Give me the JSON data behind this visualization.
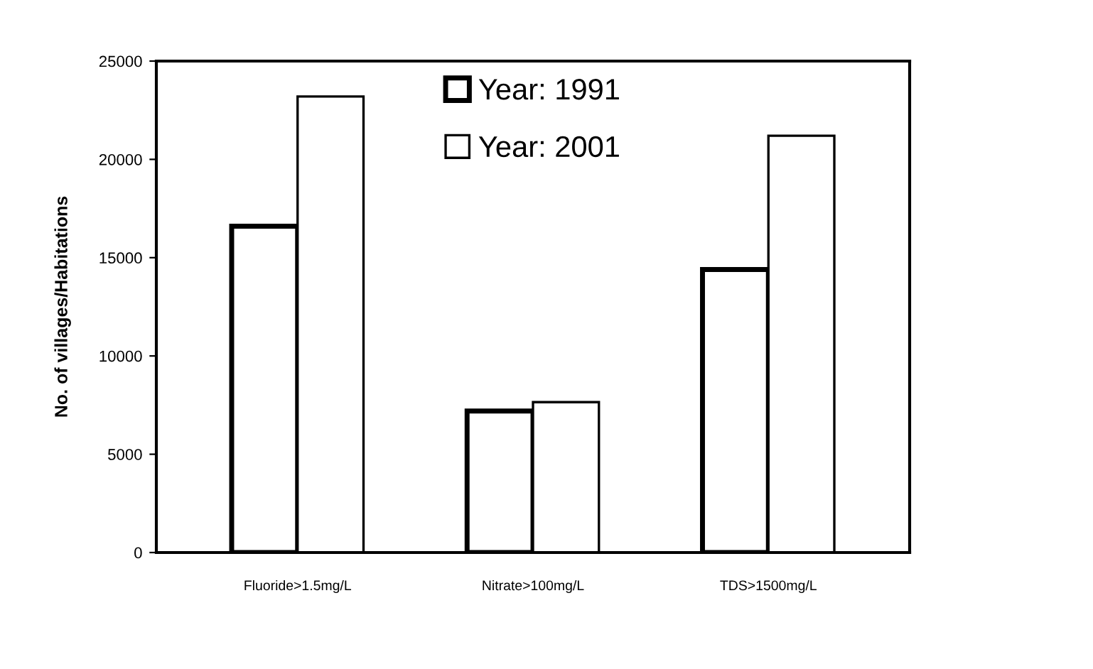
{
  "chart_data": {
    "type": "bar",
    "ylabel": "No. of villages/Habitations",
    "categories": [
      "Fluoride>1.5mg/L",
      "Nitrate>100mg/L",
      "TDS>1500mg/L"
    ],
    "series": [
      {
        "name": "Year: 1991",
        "color": "#ffffff",
        "values": [
          16600,
          7200,
          14400
        ]
      },
      {
        "name": "Year: 2001",
        "color": "#ffffff",
        "values": [
          23200,
          7650,
          21200
        ]
      }
    ],
    "ylim": [
      0,
      25000
    ],
    "yticks": [
      0,
      5000,
      10000,
      15000,
      20000,
      25000
    ],
    "grid": false,
    "legend": "top"
  }
}
